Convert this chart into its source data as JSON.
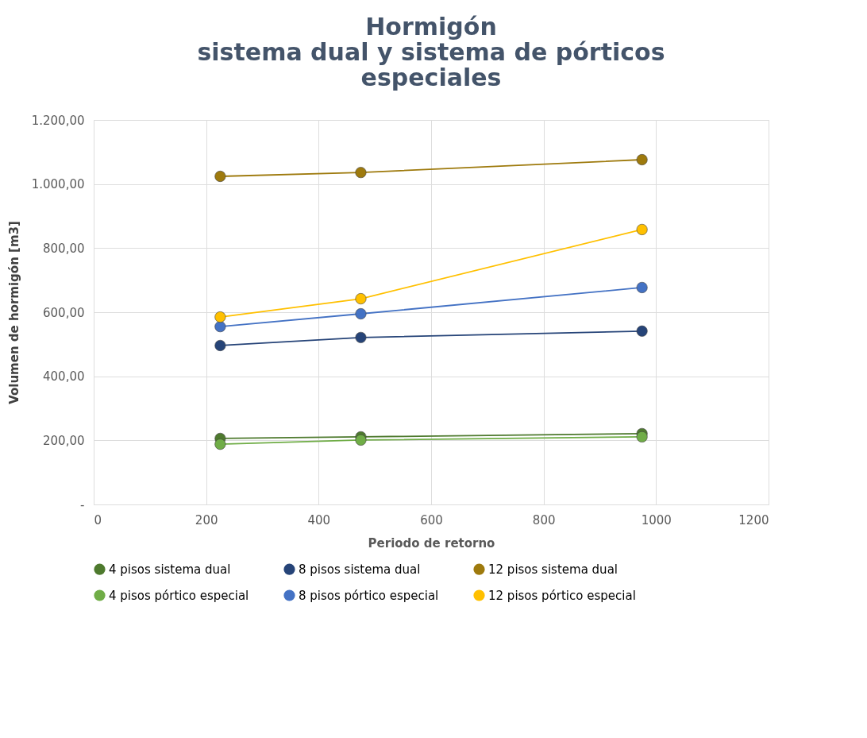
{
  "chart_data": {
    "type": "line",
    "title": "Hormigón\nsistema dual y sistema de pórticos\nespeciales",
    "xlabel": "Periodo de retorno",
    "ylabel": "Volumen de hormigón [m3]",
    "x": [
      225,
      475,
      975
    ],
    "series": [
      {
        "name": "4 pisos sistema dual",
        "color": "#4e7a2e",
        "values": [
          206,
          211,
          221
        ]
      },
      {
        "name": "8 pisos sistema dual",
        "color": "#264478",
        "values": [
          496,
          521,
          541
        ]
      },
      {
        "name": "12 pisos sistema dual",
        "color": "#9e7a0d",
        "values": [
          1024,
          1036,
          1076
        ]
      },
      {
        "name": "4 pisos pórtico especial",
        "color": "#70ad47",
        "values": [
          188,
          201,
          211
        ]
      },
      {
        "name": "8 pisos pórtico especial",
        "color": "#4472c4",
        "values": [
          555,
          595,
          677
        ]
      },
      {
        "name": "12 pisos pórtico especial",
        "color": "#ffc000",
        "values": [
          585,
          642,
          858
        ]
      }
    ],
    "xlim": [
      0,
      1200
    ],
    "xticks": [
      0,
      200,
      400,
      600,
      800,
      1000,
      1200
    ],
    "ylim": [
      0,
      1200
    ],
    "yticks": [
      {
        "value": 0,
        "label": "-"
      },
      {
        "value": 200,
        "label": "200,00"
      },
      {
        "value": 400,
        "label": "400,00"
      },
      {
        "value": 600,
        "label": "600,00"
      },
      {
        "value": 800,
        "label": "800,00"
      },
      {
        "value": 1000,
        "label": "1.000,00"
      },
      {
        "value": 1200,
        "label": "1.200,00"
      }
    ],
    "grid": true,
    "legend": "bottom",
    "marker": "circle",
    "line_style": "solid"
  }
}
